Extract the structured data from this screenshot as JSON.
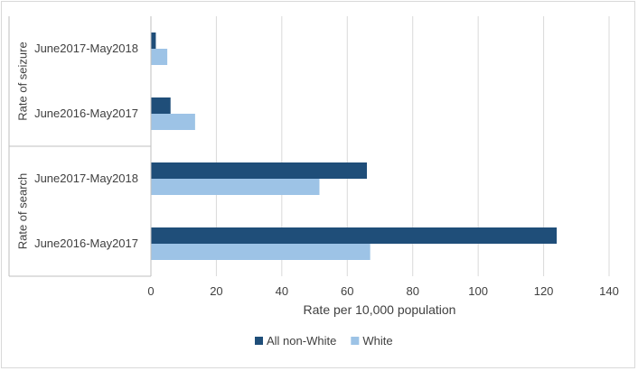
{
  "chart_data": {
    "type": "bar",
    "orientation": "horizontal",
    "title": "",
    "xlabel": "Rate per 10,000 population",
    "ylabel": "",
    "xlim": [
      0,
      140
    ],
    "x_ticks": [
      "0",
      "20",
      "40",
      "60",
      "80",
      "100",
      "120",
      "140"
    ],
    "grid": true,
    "legend_position": "bottom",
    "groups": [
      {
        "label": "Rate of seizure",
        "categories": [
          "June2017-May2018",
          "June2016-May2017"
        ]
      },
      {
        "label": "Rate of search",
        "categories": [
          "June2017-May2018",
          "June2016-May2017"
        ]
      }
    ],
    "series": [
      {
        "name": "All non-White",
        "color": "#1f4e79",
        "values": [
          1.5,
          6,
          66,
          124
        ]
      },
      {
        "name": "White",
        "color": "#9dc3e6",
        "values": [
          5,
          13.5,
          51.5,
          67
        ]
      }
    ]
  }
}
